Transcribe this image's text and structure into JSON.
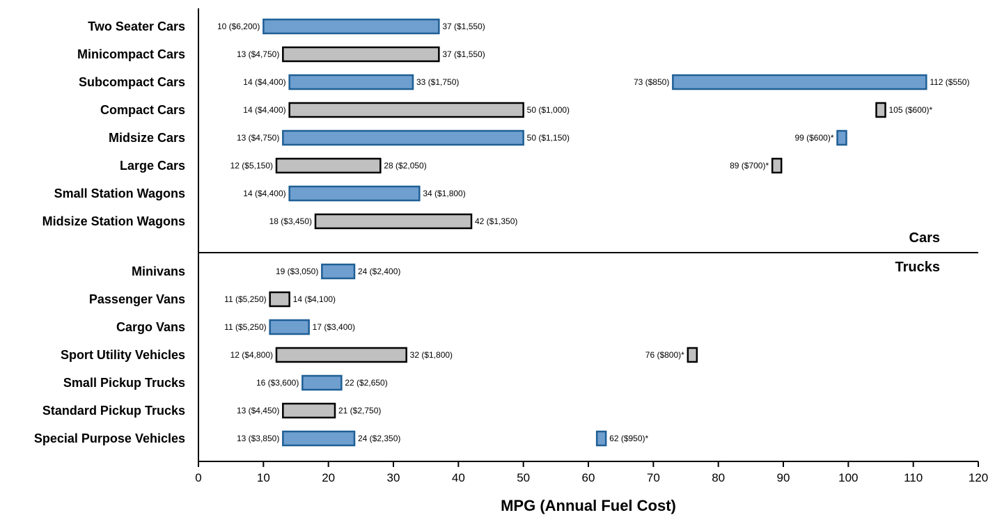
{
  "chart_data": {
    "type": "bar",
    "subtype": "floating-range",
    "xlabel": "MPG (Annual Fuel Cost)",
    "xlim": [
      0,
      120
    ],
    "xticks": [
      0,
      10,
      20,
      30,
      40,
      50,
      60,
      70,
      80,
      90,
      100,
      110,
      120
    ],
    "grid": false,
    "groups": [
      {
        "label": "Cars",
        "first_row": 0,
        "last_row": 7
      },
      {
        "label": "Trucks",
        "first_row": 8,
        "last_row": 14
      }
    ],
    "colors": {
      "blue_fill": "#6f9fcf",
      "blue_stroke": "#1f5f95",
      "gray_fill": "#c0c0c0",
      "gray_stroke": "#000000"
    },
    "rows": [
      {
        "category": "Two Seater Cars",
        "style": "blue",
        "segments": [
          {
            "min": 10,
            "max": 37,
            "min_label": "10 ($6,200)",
            "max_label": "37 ($1,550)"
          }
        ]
      },
      {
        "category": "Minicompact Cars",
        "style": "gray",
        "segments": [
          {
            "min": 13,
            "max": 37,
            "min_label": "13 ($4,750)",
            "max_label": "37 ($1,550)"
          }
        ]
      },
      {
        "category": "Subcompact Cars",
        "style": "blue",
        "segments": [
          {
            "min": 14,
            "max": 33,
            "min_label": "14 ($4,400)",
            "max_label": "33 ($1,750)"
          },
          {
            "min": 73,
            "max": 112,
            "min_label": "73 ($850)",
            "max_label": "112 ($550)"
          }
        ]
      },
      {
        "category": "Compact Cars",
        "style": "gray",
        "segments": [
          {
            "min": 14,
            "max": 50,
            "min_label": "14 ($4,400)",
            "max_label": "50 ($1,000)"
          },
          {
            "min": 105,
            "max": 105,
            "max_label": "105 ($600)*"
          }
        ]
      },
      {
        "category": "Midsize Cars",
        "style": "blue",
        "segments": [
          {
            "min": 13,
            "max": 50,
            "min_label": "13 ($4,750)",
            "max_label": "50 ($1,150)"
          },
          {
            "min": 99,
            "max": 99,
            "min_label": "99 ($600)*"
          }
        ]
      },
      {
        "category": "Large Cars",
        "style": "gray",
        "segments": [
          {
            "min": 12,
            "max": 28,
            "min_label": "12 ($5,150)",
            "max_label": "28 ($2,050)"
          },
          {
            "min": 89,
            "max": 89,
            "min_label": "89 ($700)*"
          }
        ]
      },
      {
        "category": "Small Station Wagons",
        "style": "blue",
        "segments": [
          {
            "min": 14,
            "max": 34,
            "min_label": "14 ($4,400)",
            "max_label": "34 ($1,800)"
          }
        ]
      },
      {
        "category": "Midsize Station Wagons",
        "style": "gray",
        "segments": [
          {
            "min": 18,
            "max": 42,
            "min_label": "18 ($3,450)",
            "max_label": "42 ($1,350)"
          }
        ]
      },
      {
        "category": "Minivans",
        "style": "blue",
        "segments": [
          {
            "min": 19,
            "max": 24,
            "min_label": "19 ($3,050)",
            "max_label": "24 ($2,400)"
          }
        ]
      },
      {
        "category": "Passenger Vans",
        "style": "gray",
        "segments": [
          {
            "min": 11,
            "max": 14,
            "min_label": "11 ($5,250)",
            "max_label": "14 ($4,100)"
          }
        ]
      },
      {
        "category": "Cargo Vans",
        "style": "blue",
        "segments": [
          {
            "min": 11,
            "max": 17,
            "min_label": "11 ($5,250)",
            "max_label": "17 ($3,400)"
          }
        ]
      },
      {
        "category": "Sport Utility Vehicles",
        "style": "gray",
        "segments": [
          {
            "min": 12,
            "max": 32,
            "min_label": "12 ($4,800)",
            "max_label": "32 ($1,800)"
          },
          {
            "min": 76,
            "max": 76,
            "min_label": "76 ($800)*"
          }
        ]
      },
      {
        "category": "Small Pickup Trucks",
        "style": "blue",
        "segments": [
          {
            "min": 16,
            "max": 22,
            "min_label": "16 ($3,600)",
            "max_label": "22 ($2,650)"
          }
        ]
      },
      {
        "category": "Standard Pickup Trucks",
        "style": "gray",
        "segments": [
          {
            "min": 13,
            "max": 21,
            "min_label": "13 ($4,450)",
            "max_label": "21 ($2,750)"
          }
        ]
      },
      {
        "category": "Special Purpose Vehicles",
        "style": "blue",
        "segments": [
          {
            "min": 13,
            "max": 24,
            "min_label": "13 ($3,850)",
            "max_label": "24 ($2,350)"
          },
          {
            "min": 62,
            "max": 62,
            "max_label": "62 ($950)*"
          }
        ]
      }
    ]
  }
}
